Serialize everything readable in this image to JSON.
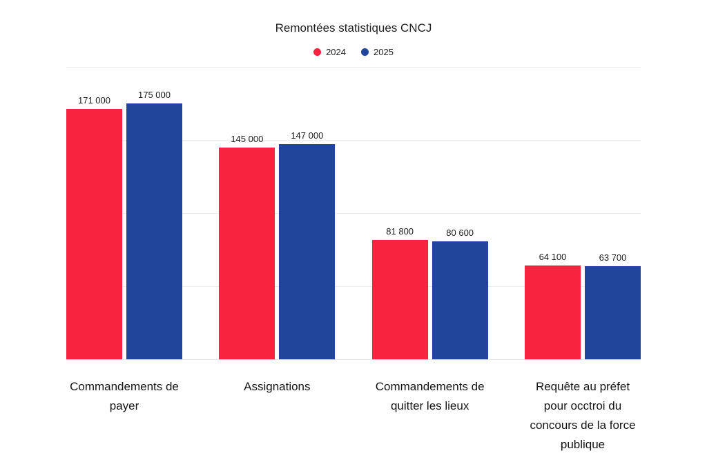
{
  "chart_data": {
    "type": "bar",
    "title": "Remontées statistiques CNCJ",
    "categories": [
      "Commandements de payer",
      "Assignations",
      "Commandements de quitter les lieux",
      "Requête au préfet pour occtroi du concours de la force publique"
    ],
    "category_label_lines": [
      [
        "Commandements de",
        "payer"
      ],
      [
        "Assignations"
      ],
      [
        "Commandements de",
        "quitter les lieux"
      ],
      [
        "Requête au préfet",
        "pour occtroi du",
        "concours de la force",
        "publique"
      ]
    ],
    "series": [
      {
        "name": "2024",
        "color": "#f8233e",
        "values": [
          171000,
          145000,
          81800,
          64100
        ],
        "value_labels": [
          "171 000",
          "145 000",
          "81 800",
          "64 100"
        ]
      },
      {
        "name": "2025",
        "color": "#21459a",
        "values": [
          175000,
          147000,
          80600,
          63700
        ],
        "value_labels": [
          "175 000",
          "147 000",
          "80 600",
          "63 700"
        ]
      }
    ],
    "xlabel": "",
    "ylabel": "",
    "ylim": [
      0,
      200000
    ],
    "gridline_step": 50000,
    "grid": true,
    "y_tick_labels_shown": false,
    "legend_position": "top-center",
    "colors": {
      "grid": "#ececec",
      "baseline": "#e3e3e3",
      "text": "#1a1a1a",
      "background": "#ffffff"
    }
  }
}
